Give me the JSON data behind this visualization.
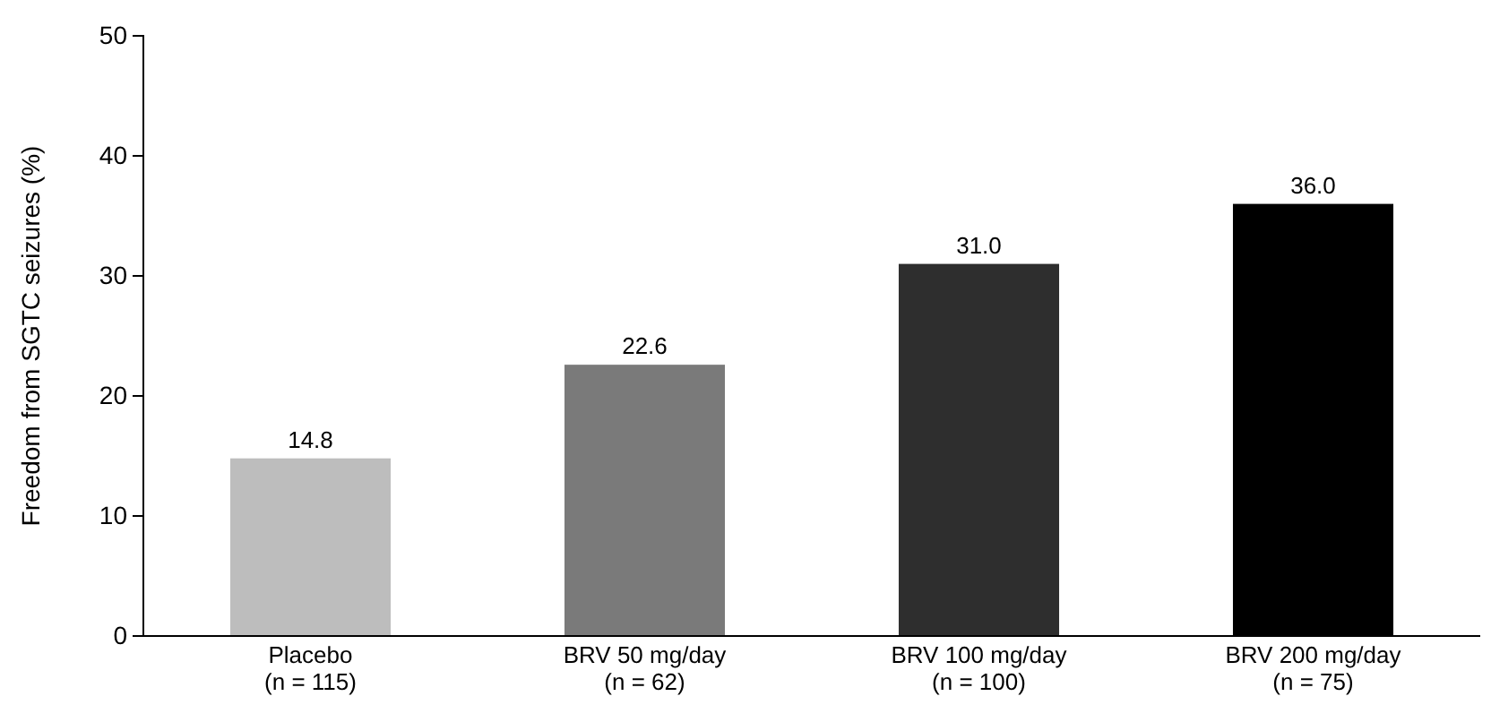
{
  "chart_data": {
    "type": "bar",
    "ylabel": "Freedom from SGTC seizures (%)",
    "categories": [
      "Placebo\n(n = 115)",
      "BRV 50 mg/day\n(n = 62)",
      "BRV 100 mg/day\n(n = 100)",
      "BRV 200 mg/day\n(n = 75)"
    ],
    "values": [
      14.8,
      22.6,
      31.0,
      36.0
    ],
    "value_labels": [
      "14.8",
      "22.6",
      "31.0",
      "36.0"
    ],
    "colors": [
      "#bdbdbd",
      "#7a7a7a",
      "#2e2e2e",
      "#000000"
    ],
    "ylim": [
      0,
      50
    ],
    "yticks": [
      0,
      10,
      20,
      30,
      40,
      50
    ]
  }
}
